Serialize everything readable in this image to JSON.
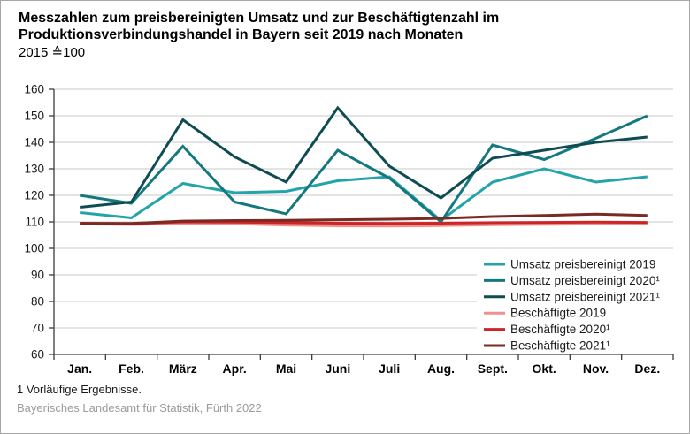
{
  "header": {
    "title": "Messzahlen zum preisbereinigten Umsatz und zur Beschäftigtenzahl im Produktionsverbindungshandel in Bayern seit 2019 nach Monaten",
    "subtitle": "2015 ≙100"
  },
  "footnotes": {
    "note": "1  Vorläufige Ergebnisse.",
    "source": "Bayerisches Landesamt für Statistik, Fürth 2022"
  },
  "chart_data": {
    "type": "line",
    "title": "Messzahlen zum preisbereinigten Umsatz und zur Beschäftigtenzahl im Produktionsverbindungshandel in Bayern seit 2019 nach Monaten",
    "subtitle": "2015 ≙100",
    "categories": [
      "Jan.",
      "Feb.",
      "März",
      "Apr.",
      "Mai",
      "Juni",
      "Juli",
      "Aug.",
      "Sept.",
      "Okt.",
      "Nov.",
      "Dez."
    ],
    "series": [
      {
        "name": "Umsatz preisbereinigt 2019",
        "color": "#23a3aa",
        "values": [
          113.5,
          111.5,
          124.5,
          121.0,
          121.5,
          125.5,
          127.0,
          110.5,
          125.0,
          130.0,
          125.0,
          127.0
        ]
      },
      {
        "name": "Umsatz preisbereinigt 2020¹",
        "color": "#15787f",
        "values": [
          120.0,
          117.0,
          138.5,
          117.5,
          113.0,
          137.0,
          126.5,
          110.0,
          139.0,
          133.5,
          141.5,
          150.0
        ]
      },
      {
        "name": "Umsatz preisbereinigt 2021¹",
        "color": "#0e4c52",
        "values": [
          115.5,
          117.5,
          148.5,
          134.5,
          125.0,
          153.0,
          131.0,
          119.0,
          134.0,
          137.0,
          140.0,
          142.0
        ]
      },
      {
        "name": "Beschäftigte 2019",
        "color": "#f0908e",
        "values": [
          109.2,
          109.0,
          109.4,
          109.3,
          108.8,
          108.5,
          108.4,
          108.6,
          108.9,
          109.1,
          109.2,
          109.2
        ]
      },
      {
        "name": "Beschäftigte 2020¹",
        "color": "#cc2525",
        "values": [
          109.5,
          109.3,
          110.0,
          109.9,
          109.7,
          109.5,
          109.4,
          109.5,
          109.7,
          109.8,
          109.9,
          109.8
        ]
      },
      {
        "name": "Beschäftigte 2021¹",
        "color": "#7b2a23",
        "values": [
          109.4,
          109.4,
          110.3,
          110.5,
          110.6,
          110.8,
          111.0,
          111.3,
          112.0,
          112.4,
          112.9,
          112.4
        ]
      }
    ],
    "ylim": [
      60,
      160
    ],
    "ytick_step": 10,
    "grid": true,
    "legend_position": "lower-right",
    "xlabel": "",
    "ylabel": ""
  }
}
